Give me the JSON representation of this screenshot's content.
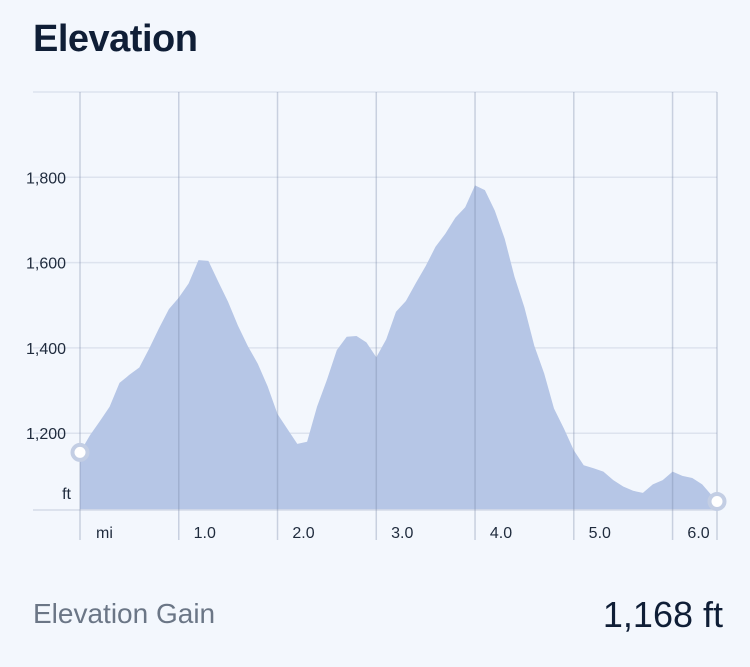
{
  "header": {
    "title": "Elevation"
  },
  "chart_data": {
    "type": "area",
    "title": "Elevation",
    "y_unit": "ft",
    "x_unit": "mi",
    "xlim": [
      0,
      6.45
    ],
    "ylim": [
      1020,
      2000
    ],
    "y_ticks": [
      1200,
      1400,
      1600,
      1800
    ],
    "y_tick_labels": [
      "1,200",
      "1,400",
      "1,600",
      "1,800"
    ],
    "x_ticks": [
      1,
      2,
      3,
      4,
      5,
      6
    ],
    "x_tick_labels": [
      "1.0",
      "2.0",
      "3.0",
      "4.0",
      "5.0",
      "6.0"
    ],
    "grid": true,
    "color": "#b6c6e6",
    "series": [
      {
        "x": [
          0,
          0.1,
          0.2,
          0.3,
          0.4,
          0.5,
          0.6,
          0.7,
          0.8,
          0.9,
          1.0,
          1.1,
          1.2,
          1.3,
          1.4,
          1.5,
          1.6,
          1.7,
          1.8,
          1.9,
          2.0,
          2.1,
          2.2,
          2.3,
          2.4,
          2.5,
          2.6,
          2.7,
          2.8,
          2.9,
          3.0,
          3.1,
          3.2,
          3.3,
          3.4,
          3.5,
          3.6,
          3.7,
          3.8,
          3.9,
          4.0,
          4.1,
          4.2,
          4.3,
          4.4,
          4.5,
          4.6,
          4.7,
          4.8,
          4.9,
          5.0,
          5.1,
          5.2,
          5.3,
          5.4,
          5.5,
          5.6,
          5.7,
          5.8,
          5.9,
          6.0,
          6.1,
          6.2,
          6.3,
          6.45
        ],
        "y": [
          1155,
          1195,
          1228,
          1262,
          1318,
          1337,
          1354,
          1398,
          1446,
          1491,
          1518,
          1551,
          1606,
          1604,
          1555,
          1508,
          1452,
          1404,
          1363,
          1310,
          1245,
          1210,
          1175,
          1180,
          1262,
          1325,
          1395,
          1426,
          1428,
          1413,
          1378,
          1420,
          1485,
          1510,
          1552,
          1592,
          1637,
          1668,
          1705,
          1730,
          1781,
          1770,
          1722,
          1656,
          1567,
          1495,
          1405,
          1340,
          1258,
          1211,
          1160,
          1125,
          1118,
          1110,
          1090,
          1075,
          1065,
          1060,
          1080,
          1090,
          1110,
          1100,
          1095,
          1080,
          1040
        ]
      }
    ],
    "markers": [
      {
        "x": 0,
        "y": 1155
      },
      {
        "x": 6.45,
        "y": 1040
      }
    ]
  },
  "footer": {
    "label": "Elevation Gain",
    "value": "1,168 ft"
  }
}
